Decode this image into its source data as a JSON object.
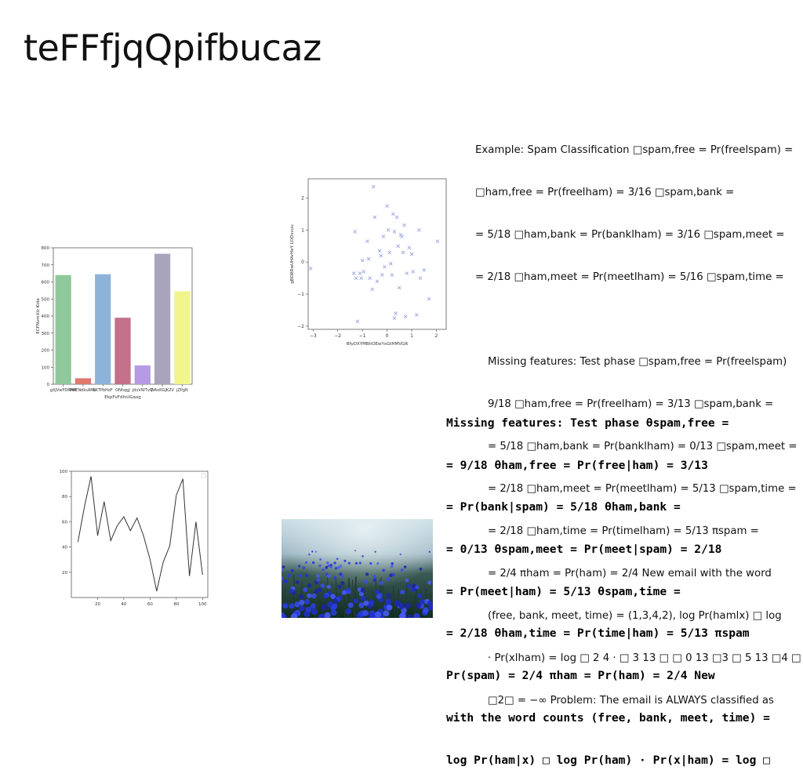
{
  "slide": {
    "title": "teFFfjqQpifbucaz"
  },
  "text_block_1": {
    "lines": [
      "Example: Spam Classification □spam,free = Pr(freelspam) =",
      "□ham,free = Pr(freelham) = 3/16 □spam,bank =",
      "= 5/18 □ham,bank = Pr(banklham) = 3/16 □spam,meet =",
      "= 2/18 □ham,meet = Pr(meetlham) = 5/16 □spam,time ="
    ],
    "indented_lines": [
      "Missing features: Test phase □spam,free = Pr(freelspam)",
      "9/18 □ham,free = Pr(freelham) = 3/13 □spam,bank =",
      "= 5/18 □ham,bank = Pr(banklham) = 0/13 □spam,meet =",
      "= 2/18 □ham,meet = Pr(meetlham) = 5/13 □spam,time =",
      "= 2/18 □ham,time = Pr(timelham) = 5/13 πspam =",
      "= 2/4 πham = Pr(ham) = 2/4 New email with the word",
      "(free, bank, meet, time) = (1,3,4,2), log Pr(hamlx) □ log",
      "· Pr(xlham) = log □ 2 4 · □ 3 13 □ □ 0 13 □3 □ 5 13 □4 □ 5",
      "□2□ = −∞ Problem: The email is ALWAYS classified as"
    ]
  },
  "text_block_2": {
    "lines": [
      "Missing features: Test phase θspam,free =",
      "= 9/18 θham,free = Pr(free|ham) = 3/13",
      "= Pr(bank|spam) = 5/18 θham,bank =",
      "= 0/13 θspam,meet = Pr(meet|spam) = 2/18",
      "= Pr(meet|ham) = 5/13 θspam,time =",
      "= 2/18 θham,time = Pr(time|ham) = 5/13 πspam",
      "Pr(spam) = 2/4 πham = Pr(ham) = 2/4 New",
      "with the word counts (free, bank, meet, time) =",
      "log Pr(ham|x) □ log Pr(ham) · Pr(x|ham) = log □"
    ]
  },
  "chart_data": [
    {
      "type": "bar",
      "title": "",
      "xlabel": "EkpFvFdfsUGaog",
      "ylabel": "ECFNvmXIz Kida",
      "categories": [
        "gXJVwPDRMX",
        "PMENdksAMK",
        "LXTPbHoF",
        "ONhqgJ",
        "JdxVWTvQ",
        "WAxRGJKZV",
        "jZPgN"
      ],
      "values": [
        640,
        35,
        645,
        390,
        110,
        765,
        545
      ],
      "colors": [
        "#8fc89a",
        "#e0796e",
        "#8db3d8",
        "#c4708a",
        "#b59ae6",
        "#a9a4bc",
        "#f1f58c"
      ],
      "ylim": [
        0,
        800
      ],
      "yticks": [
        0,
        100,
        200,
        300,
        400,
        500,
        600,
        700,
        800
      ],
      "grid": false
    },
    {
      "type": "scatter",
      "title": "",
      "xlabel": "BfyDXYMBhOEwYxGtHMVGR",
      "ylabel": "gBDRRwUHArHeY LODxvuu",
      "marker": "x",
      "color": "#9aa4e0",
      "xlim": [
        -3.2,
        2.4
      ],
      "ylim": [
        -2.1,
        2.6
      ],
      "xticks": [
        -3,
        -2,
        -1,
        0,
        1,
        2
      ],
      "yticks": [
        -2,
        -1,
        0,
        1,
        2
      ],
      "points": [
        [
          -3.1,
          -0.2
        ],
        [
          -1.3,
          0.95
        ],
        [
          -1.35,
          -0.35
        ],
        [
          -1.25,
          -0.5
        ],
        [
          -1.1,
          -0.35
        ],
        [
          -1.05,
          -0.5
        ],
        [
          -1.2,
          -1.85
        ],
        [
          -1.0,
          0.05
        ],
        [
          -0.95,
          -0.3
        ],
        [
          -0.8,
          0.65
        ],
        [
          -0.75,
          0.1
        ],
        [
          -0.7,
          -0.5
        ],
        [
          -0.6,
          -0.85
        ],
        [
          -0.55,
          2.35
        ],
        [
          -0.5,
          1.4
        ],
        [
          -0.4,
          -0.6
        ],
        [
          -0.3,
          0.35
        ],
        [
          -0.25,
          0.2
        ],
        [
          -0.2,
          -0.4
        ],
        [
          -0.15,
          0.8
        ],
        [
          -0.1,
          -0.15
        ],
        [
          0.0,
          1.75
        ],
        [
          0.05,
          1.0
        ],
        [
          0.1,
          0.3
        ],
        [
          0.15,
          -0.05
        ],
        [
          0.2,
          -0.4
        ],
        [
          0.25,
          1.5
        ],
        [
          0.3,
          0.95
        ],
        [
          0.35,
          -1.6
        ],
        [
          0.4,
          1.4
        ],
        [
          0.45,
          0.5
        ],
        [
          0.5,
          -0.8
        ],
        [
          0.55,
          0.85
        ],
        [
          0.6,
          0.8
        ],
        [
          0.65,
          0.3
        ],
        [
          0.7,
          1.15
        ],
        [
          0.75,
          -1.7
        ],
        [
          0.8,
          -0.35
        ],
        [
          0.9,
          0.45
        ],
        [
          1.0,
          0.25
        ],
        [
          1.05,
          -0.3
        ],
        [
          1.2,
          -1.65
        ],
        [
          1.3,
          1.0
        ],
        [
          1.35,
          -0.5
        ],
        [
          1.5,
          -0.25
        ],
        [
          1.7,
          -1.15
        ],
        [
          2.05,
          0.65
        ],
        [
          0.3,
          -1.75
        ]
      ],
      "grid": false
    },
    {
      "type": "line",
      "title": "",
      "xlabel": "",
      "ylabel": "",
      "color": "#333333",
      "x": [
        5,
        10,
        15,
        20,
        25,
        30,
        35,
        40,
        45,
        50,
        55,
        60,
        65,
        70,
        75,
        80,
        85,
        90,
        95,
        100
      ],
      "y": [
        44,
        72,
        96,
        49,
        76,
        45,
        57,
        64,
        53,
        63,
        49,
        30,
        5,
        28,
        41,
        81,
        94,
        17,
        60,
        18
      ],
      "xlim": [
        0,
        104
      ],
      "ylim": [
        0,
        100
      ],
      "xticks": [
        20,
        40,
        60,
        80,
        100
      ],
      "yticks": [
        20,
        40,
        60,
        80,
        100
      ],
      "grid": false
    }
  ],
  "photo": {
    "subject": "blue-flowers-photo"
  }
}
